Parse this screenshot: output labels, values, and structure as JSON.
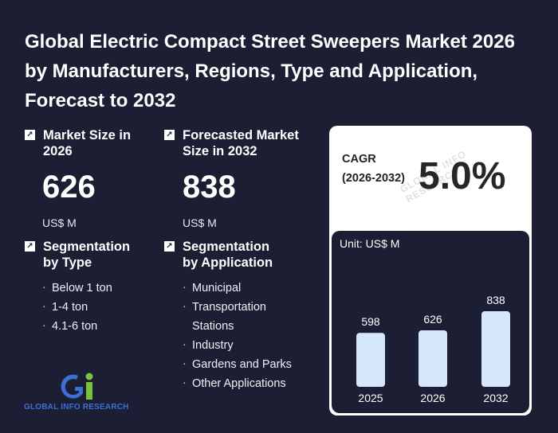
{
  "title": "Global Electric Compact Street Sweepers Market 2026 by Manufacturers, Regions, Type and Application, Forecast to 2032",
  "market_size": {
    "label": "Market Size in 2026",
    "value": "626",
    "unit": "US$ M"
  },
  "forecast": {
    "label": "Forecasted Market Size in 2032",
    "value": "838",
    "unit": "US$ M"
  },
  "seg_type": {
    "label": "Segmentation by Type",
    "items": [
      "Below 1 ton",
      "1-4 ton",
      "4.1-6 ton"
    ]
  },
  "seg_app": {
    "label": "Segmentation by Application",
    "items": [
      "Municipal",
      "Transportation Stations",
      "Industry",
      "Gardens and Parks",
      "Other Applications"
    ]
  },
  "cagr": {
    "label": "CAGR (2026-2032)",
    "value": "5.0%"
  },
  "logo": {
    "text": "GLOBAL INFO RESEARCH"
  },
  "colors": {
    "background": "#1c1f33",
    "bar": "#d6e6fb",
    "logo_blue": "#3b6fd6",
    "logo_green": "#7bc043"
  },
  "chart_data": {
    "type": "bar",
    "title": "",
    "unit_label": "Unit: US$ M",
    "categories": [
      "2025",
      "2026",
      "2032"
    ],
    "values": [
      598,
      626,
      838
    ],
    "ylim": [
      0,
      900
    ],
    "grid": false
  }
}
